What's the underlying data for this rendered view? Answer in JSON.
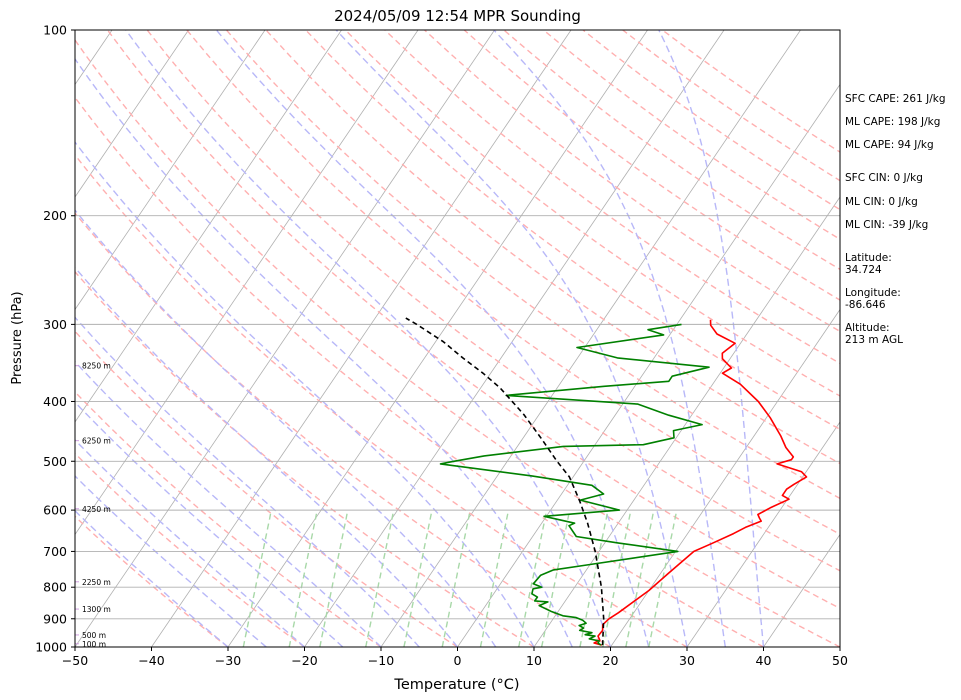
{
  "chart_data": {
    "type": "line",
    "title": "2024/05/09 12:54 MPR Sounding",
    "xlabel": "Temperature (°C)",
    "ylabel": "Pressure (hPa)",
    "xlim": [
      -50,
      50
    ],
    "ylim": [
      1000,
      100
    ],
    "y_scale": "log",
    "xticks": [
      -50,
      -40,
      -30,
      -20,
      -10,
      0,
      10,
      20,
      30,
      40,
      50
    ],
    "yticks": [
      100,
      200,
      300,
      400,
      500,
      600,
      700,
      800,
      900,
      1000
    ],
    "height_labels": [
      {
        "pressure": 350,
        "text": "8250 m"
      },
      {
        "pressure": 463,
        "text": "6250 m"
      },
      {
        "pressure": 597,
        "text": "4250 m"
      },
      {
        "pressure": 784,
        "text": "2250 m"
      },
      {
        "pressure": 868,
        "text": "1300 m"
      },
      {
        "pressure": 956,
        "text": "500 m"
      },
      {
        "pressure": 988,
        "text": "100 m"
      }
    ],
    "series": [
      {
        "color": "#ff0000",
        "points": [
          [
            18.7,
            993
          ],
          [
            17.5,
            985
          ],
          [
            18.0,
            975
          ],
          [
            17.4,
            960
          ],
          [
            17.5,
            940
          ],
          [
            17.0,
            920
          ],
          [
            17.3,
            900
          ],
          [
            18.0,
            880
          ],
          [
            20.0,
            810
          ],
          [
            21.0,
            760
          ],
          [
            22.4,
            700
          ],
          [
            24.0,
            680
          ],
          [
            26.0,
            655
          ],
          [
            27.0,
            640
          ],
          [
            28.5,
            625
          ],
          [
            28.0,
            618
          ],
          [
            27.5,
            610
          ],
          [
            28.5,
            595
          ],
          [
            30.2,
            576
          ],
          [
            29.0,
            568
          ],
          [
            29.0,
            555
          ],
          [
            29.5,
            545
          ],
          [
            30.5,
            530
          ],
          [
            29.4,
            520
          ],
          [
            25.5,
            505
          ],
          [
            27.0,
            497
          ],
          [
            27.0,
            492
          ],
          [
            25.2,
            475
          ],
          [
            23.5,
            455
          ],
          [
            20.5,
            425
          ],
          [
            17.5,
            400
          ],
          [
            13.6,
            375
          ],
          [
            10.3,
            360
          ],
          [
            11.0,
            353
          ],
          [
            9.0,
            341
          ],
          [
            8.5,
            334
          ],
          [
            9.3,
            322
          ],
          [
            6.1,
            311
          ],
          [
            4.5,
            301
          ],
          [
            4.0,
            295
          ]
        ]
      },
      {
        "color": "#008000",
        "points": [
          [
            18.6,
            993
          ],
          [
            18.0,
            985
          ],
          [
            18.0,
            978
          ],
          [
            16.5,
            970
          ],
          [
            17.0,
            960
          ],
          [
            15.6,
            955
          ],
          [
            16.3,
            948
          ],
          [
            14.5,
            940
          ],
          [
            14.8,
            932
          ],
          [
            14.0,
            923
          ],
          [
            14.7,
            915
          ],
          [
            14.0,
            905
          ],
          [
            12.9,
            896
          ],
          [
            11.0,
            890
          ],
          [
            9.0,
            875
          ],
          [
            7.0,
            857
          ],
          [
            7.8,
            845
          ],
          [
            6.0,
            842
          ],
          [
            6.0,
            830
          ],
          [
            5.0,
            820
          ],
          [
            4.7,
            805
          ],
          [
            5.7,
            800
          ],
          [
            4.3,
            790
          ],
          [
            4.5,
            765
          ],
          [
            5.7,
            750
          ],
          [
            10.0,
            735
          ],
          [
            15.0,
            718
          ],
          [
            20.3,
            700
          ],
          [
            11.7,
            678
          ],
          [
            5.7,
            662
          ],
          [
            3.8,
            636
          ],
          [
            4.3,
            630
          ],
          [
            -0.3,
            614
          ],
          [
            9.0,
            600
          ],
          [
            3.0,
            578
          ],
          [
            5.5,
            565
          ],
          [
            3.2,
            547
          ],
          [
            -5.5,
            528
          ],
          [
            -18.5,
            505
          ],
          [
            -17.0,
            500
          ],
          [
            -13.5,
            490
          ],
          [
            -4.0,
            473
          ],
          [
            6.3,
            470
          ],
          [
            9.7,
            458
          ],
          [
            9.0,
            446
          ],
          [
            12.2,
            436
          ],
          [
            7.0,
            421
          ],
          [
            2.0,
            404
          ],
          [
            -16.0,
            391
          ],
          [
            -4.0,
            378
          ],
          [
            4.0,
            371
          ],
          [
            4.0,
            364
          ],
          [
            8.0,
            352
          ],
          [
            -4.8,
            340
          ],
          [
            -11.0,
            327
          ],
          [
            -0.8,
            312
          ],
          [
            -3.3,
            306
          ],
          [
            0.6,
            300
          ]
        ]
      },
      {
        "color": "#000000",
        "dashed": true,
        "points": [
          [
            18.8,
            993
          ],
          [
            16.6,
            900
          ],
          [
            13.5,
            800
          ],
          [
            9.5,
            700
          ],
          [
            6.0,
            630
          ],
          [
            3.0,
            580
          ],
          [
            -0.5,
            530
          ],
          [
            -3.5,
            500
          ],
          [
            -7.5,
            460
          ],
          [
            -12.0,
            420
          ],
          [
            -17.5,
            380
          ],
          [
            -21.0,
            360
          ],
          [
            -25.0,
            340
          ],
          [
            -29.0,
            320
          ],
          [
            -34.0,
            300
          ],
          [
            -36.0,
            293
          ]
        ]
      }
    ]
  },
  "info": {
    "sfc_cape": "SFC CAPE: 261 J/kg",
    "ml_cape_1": "ML CAPE: 198 J/kg",
    "ml_cape_2": "ML CAPE: 94 J/kg",
    "sfc_cin": "SFC CIN: 0 J/kg",
    "ml_cin_1": "ML CIN: 0 J/kg",
    "ml_cin_2": "ML CIN: -39 J/kg",
    "latitude_label": "Latitude:",
    "latitude_value": "34.724",
    "longitude_label": "Longitude:",
    "longitude_value": "-86.646",
    "altitude_label": "Altitude:",
    "altitude_value": "213 m AGL"
  },
  "colors": {
    "isotherm": "#b0b0b0",
    "isobar": "#b0b0b0",
    "dry_adiabat": "#ffb0b0",
    "moist_adiabat": "#b8b8f8",
    "mixing_ratio": "#a8d8a8",
    "height_label_line": "#d0a0e0"
  }
}
